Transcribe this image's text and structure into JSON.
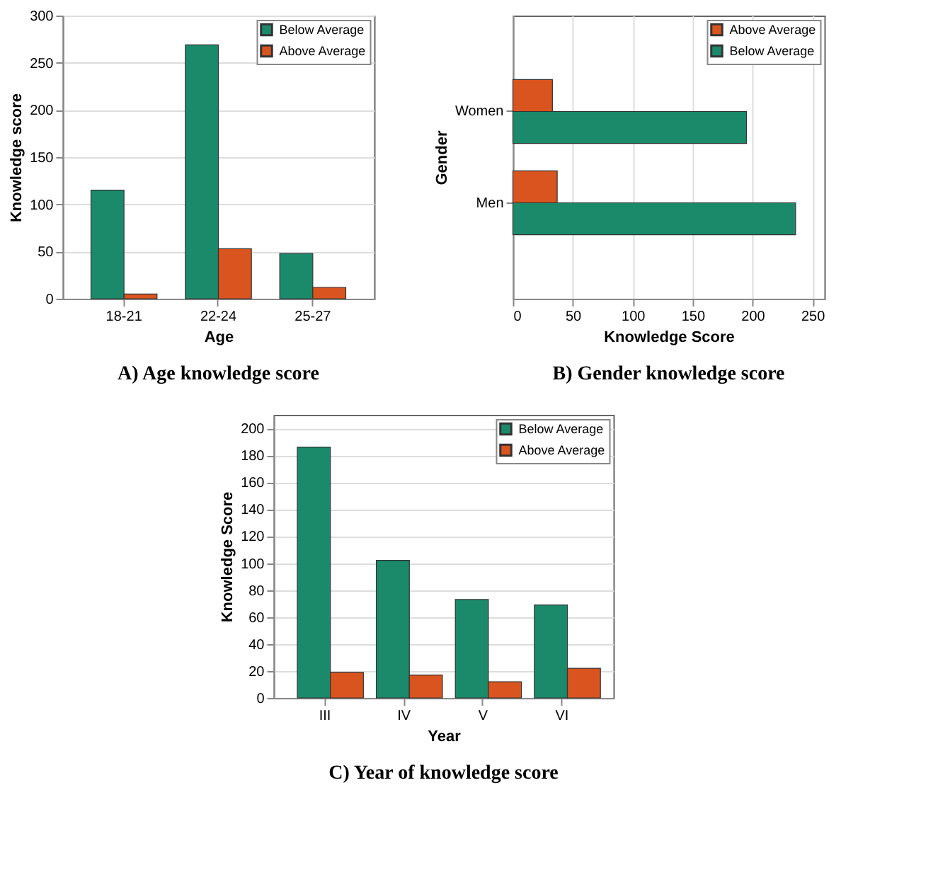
{
  "chart_data": [
    {
      "type": "bar",
      "title": "A) Age knowledge score",
      "xlabel": "Age",
      "ylabel": "Knowledge score",
      "categories": [
        "18-21",
        "22-24",
        "25-27"
      ],
      "series": [
        {
          "name": "Below Average",
          "color": "#1a8a6a",
          "values": [
            115,
            269,
            48
          ]
        },
        {
          "name": "Above Average",
          "color": "#d9541e",
          "values": [
            5,
            53,
            12
          ]
        }
      ],
      "ylim": [
        0,
        300
      ],
      "yticks": [
        0,
        50,
        100,
        150,
        200,
        250,
        300
      ],
      "grid": true,
      "legend": "top right"
    },
    {
      "type": "bar",
      "orientation": "horizontal",
      "title": "B) Gender knowledge score",
      "xlabel": "Knowledge Score",
      "ylabel": "Gender",
      "categories": [
        "Women",
        "Men"
      ],
      "series": [
        {
          "name": "Above Average",
          "color": "#d9541e",
          "values": [
            33,
            37
          ]
        },
        {
          "name": "Below Average",
          "color": "#1a8a6a",
          "values": [
            195,
            236
          ]
        }
      ],
      "xlim": [
        0,
        260
      ],
      "xticks": [
        0,
        50,
        100,
        150,
        200,
        250
      ],
      "grid": true,
      "legend": "top right"
    },
    {
      "type": "bar",
      "title": "C) Year of knowledge score",
      "xlabel": "Year",
      "ylabel": "Knowledge Score",
      "categories": [
        "III",
        "IV",
        "V",
        "VI"
      ],
      "series": [
        {
          "name": "Below Average",
          "color": "#1a8a6a",
          "values": [
            186,
            102,
            73,
            69
          ]
        },
        {
          "name": "Above Average",
          "color": "#d9541e",
          "values": [
            19,
            17,
            12,
            22
          ]
        }
      ],
      "ylim": [
        0,
        210
      ],
      "yticks": [
        0,
        20,
        40,
        60,
        80,
        100,
        120,
        140,
        160,
        180,
        200
      ],
      "grid": true,
      "legend": "top right"
    }
  ]
}
